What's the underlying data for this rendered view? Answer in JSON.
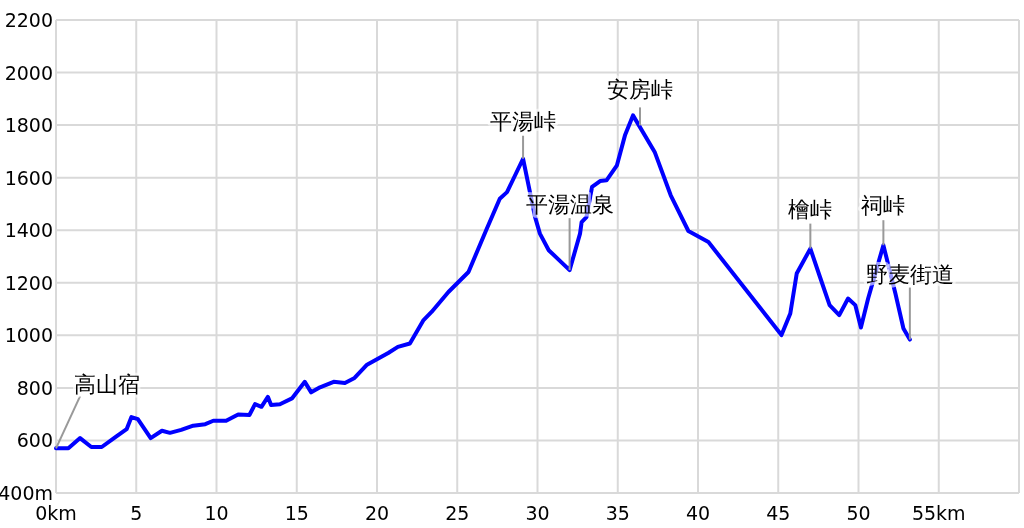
{
  "chart_data": {
    "type": "line",
    "color": "#0000ff",
    "grid": true,
    "xlim": [
      0,
      60
    ],
    "ylim": [
      400,
      2200
    ],
    "xticks": [
      {
        "value": 0,
        "label": "0km"
      },
      5,
      10,
      15,
      20,
      25,
      30,
      35,
      40,
      45,
      50,
      {
        "value": 55,
        "label": "55km"
      },
      {
        "value": 60,
        "label": null
      }
    ],
    "yticks": [
      {
        "value": 400,
        "label": "400m"
      },
      600,
      800,
      1000,
      1200,
      1400,
      1600,
      1800,
      2000,
      2200
    ],
    "x": [
      0,
      0.77,
      1.5,
      2.2,
      2.85,
      3.7,
      4.4,
      4.7,
      5.1,
      5.9,
      6.6,
      7.1,
      7.8,
      8.55,
      9.3,
      9.8,
      10.6,
      11.35,
      12.05,
      12.4,
      12.8,
      13.2,
      13.4,
      13.95,
      14.7,
      15.5,
      15.9,
      16.45,
      17.3,
      18.0,
      18.6,
      19.35,
      20.7,
      21.3,
      22.05,
      22.9,
      23.4,
      24.45,
      25.7,
      26.8,
      27.65,
      28.1,
      29.1,
      29.85,
      30.15,
      30.7,
      32.0,
      32.65,
      32.75,
      33.05,
      33.4,
      33.9,
      34.3,
      34.95,
      35.45,
      35.95,
      37.3,
      38.3,
      39.4,
      40.65,
      45.2,
      45.75,
      46.15,
      47.0,
      47.6,
      48.2,
      48.8,
      49.35,
      49.8,
      50.15,
      50.6,
      51.55,
      52.3,
      52.8,
      53.2
    ],
    "values": [
      570,
      570,
      609,
      575,
      575,
      613,
      643,
      689,
      681,
      609,
      637,
      629,
      640,
      656,
      662,
      675,
      675,
      699,
      697,
      738,
      728,
      766,
      735,
      738,
      760,
      823,
      783,
      802,
      823,
      819,
      838,
      887,
      933,
      956,
      969,
      1058,
      1089,
      1165,
      1241,
      1400,
      1520,
      1545,
      1672,
      1450,
      1387,
      1324,
      1248,
      1387,
      1431,
      1450,
      1565,
      1587,
      1590,
      1647,
      1761,
      1837,
      1698,
      1533,
      1397,
      1355,
      1001,
      1083,
      1235,
      1330,
      1222,
      1115,
      1077,
      1140,
      1115,
      1030,
      1140,
      1343,
      1159,
      1026,
      984
    ],
    "annotations": [
      {
        "text": "高山宿",
        "x": 0,
        "y": 570
      },
      {
        "text": "平湯峠",
        "x": 29.1,
        "y": 1672
      },
      {
        "text": "平湯温泉",
        "x": 32.0,
        "y": 1248
      },
      {
        "text": "安房峠",
        "x": 35.95,
        "y": 1837
      },
      {
        "text": "檜峠",
        "x": 47.0,
        "y": 1330
      },
      {
        "text": "祠峠",
        "x": 51.55,
        "y": 1343
      },
      {
        "text": "野麦街道",
        "x": 53.2,
        "y": 984
      }
    ]
  }
}
